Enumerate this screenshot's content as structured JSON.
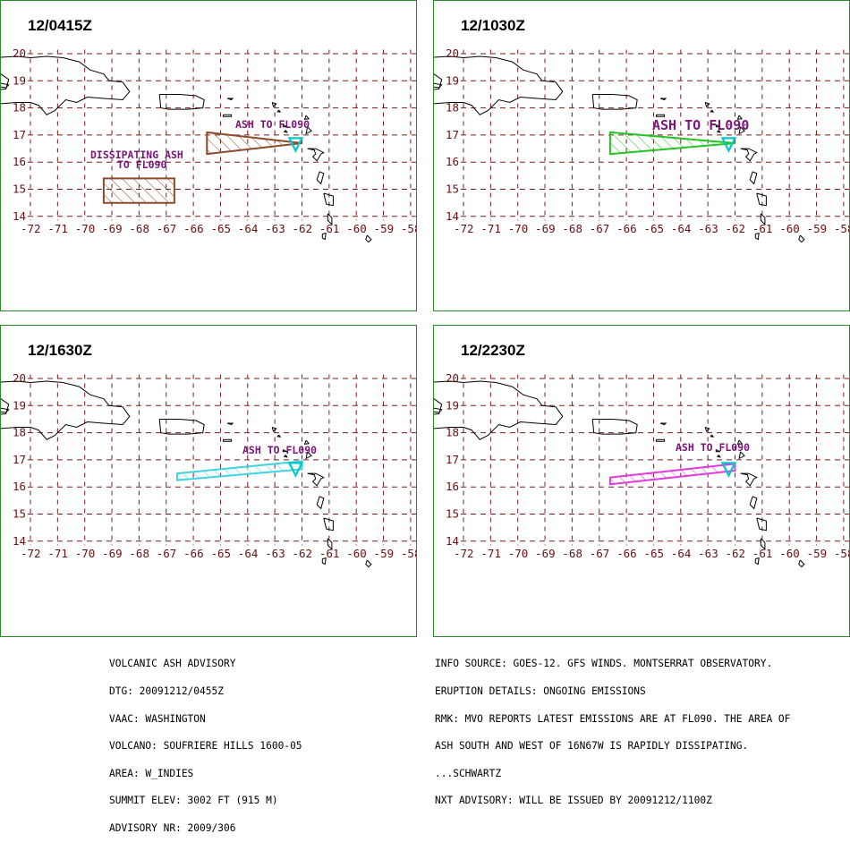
{
  "colors": {
    "grid": "#7a1a1a",
    "border": "#2a8a2a",
    "label": "#7a157a",
    "volcano": "#00c8c8"
  },
  "axes": {
    "lat_ticks": [
      "20",
      "19",
      "18",
      "17",
      "16",
      "15",
      "14"
    ],
    "lon_ticks": [
      "-72",
      "-71",
      "-70",
      "-69",
      "-68",
      "-67",
      "-66",
      "-65",
      "-64",
      "-63",
      "-62",
      "-61",
      "-60",
      "-59",
      "-58"
    ]
  },
  "panels": [
    {
      "title": "12/0415Z",
      "areas": [
        {
          "color": "#8b4a2b",
          "label_lines": [
            "ASH TO FL090"
          ],
          "points": [
            [
              -65.5,
              17.1
            ],
            [
              -62,
              16.7
            ],
            [
              -65.5,
              16.3
            ]
          ]
        },
        {
          "color": "#8b4a2b",
          "label_lines": [
            "DISSIPATING ASH",
            "TO FL090"
          ],
          "points": [
            [
              -69.3,
              15.4
            ],
            [
              -66.7,
              15.4
            ],
            [
              -66.7,
              14.5
            ],
            [
              -69.3,
              14.5
            ]
          ]
        }
      ]
    },
    {
      "title": "12/1030Z",
      "areas": [
        {
          "color": "#22c322",
          "label_lines": [
            "ASH TO FL090"
          ],
          "points": [
            [
              -66.6,
              17.1
            ],
            [
              -62,
              16.7
            ],
            [
              -66.6,
              16.3
            ]
          ]
        }
      ]
    },
    {
      "title": "12/1630Z",
      "areas": [
        {
          "color": "#3dd4e0",
          "label_lines": [
            "ASH TO FL090"
          ],
          "points": [
            [
              -66.6,
              16.5
            ],
            [
              -62,
              16.95
            ],
            [
              -62,
              16.65
            ],
            [
              -66.6,
              16.25
            ]
          ]
        }
      ]
    },
    {
      "title": "12/2230Z",
      "areas": [
        {
          "color": "#e03ae0",
          "label_lines": [
            "ASH TO FL090"
          ],
          "points": [
            [
              -66.6,
              16.35
            ],
            [
              -62,
              16.85
            ],
            [
              -62,
              16.6
            ],
            [
              -66.6,
              16.1
            ]
          ]
        }
      ]
    }
  ],
  "advisory_left": [
    "VOLCANIC ASH ADVISORY",
    "DTG: 20091212/0455Z",
    "VAAC: WASHINGTON",
    "VOLCANO: SOUFRIERE HILLS 1600-05",
    "AREA: W_INDIES",
    "SUMMIT ELEV: 3002 FT (915 M)",
    "ADVISORY NR: 2009/306"
  ],
  "advisory_right": [
    "INFO SOURCE: GOES-12. GFS WINDS. MONTSERRAT OBSERVATORY.",
    "ERUPTION DETAILS: ONGOING EMISSIONS",
    "RMK: MVO REPORTS LATEST EMISSIONS ARE AT FL090. THE AREA OF",
    "ASH SOUTH AND WEST OF 16N67W IS RAPIDLY DISSIPATING.",
    "...SCHWARTZ",
    "NXT ADVISORY: WILL BE ISSUED BY 20091212/1100Z"
  ]
}
